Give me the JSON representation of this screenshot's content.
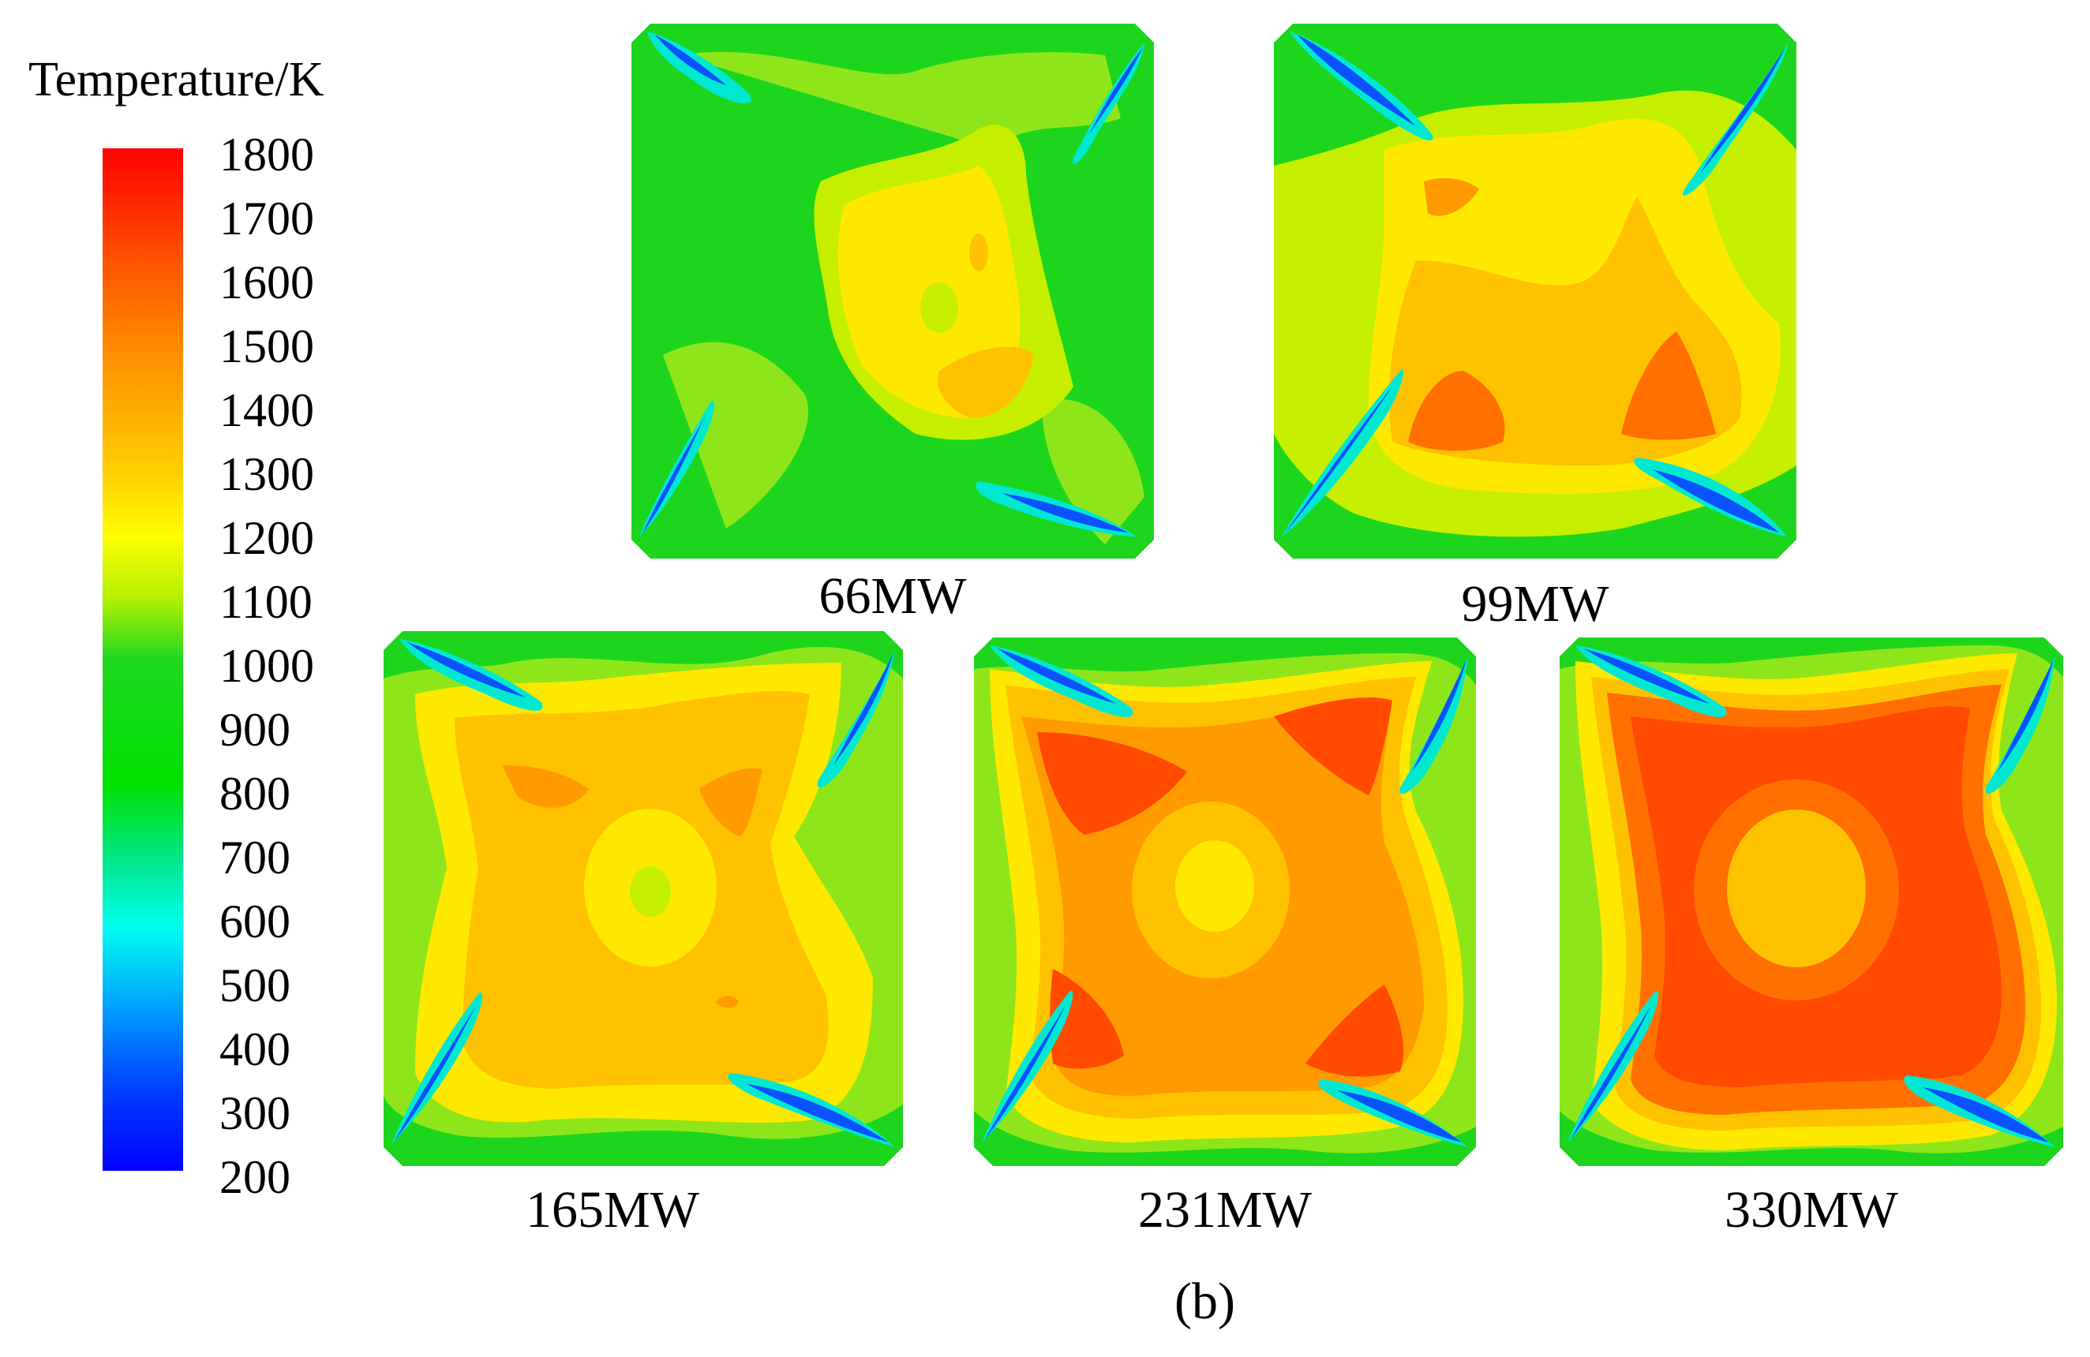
{
  "legend": {
    "title": "Temperature/K",
    "ticks": [
      "1800",
      "1700",
      "1600",
      "1500",
      "1400",
      "1300",
      "1200",
      "1100",
      "1000",
      "900",
      "800",
      "700",
      "600",
      "500",
      "400",
      "300",
      "200"
    ],
    "gradient_colors": [
      "#ff0000",
      "#ff5a00",
      "#ff9000",
      "#ffc400",
      "#ffff00",
      "#b4ff00",
      "#2cd12c",
      "#00e000",
      "#00e060",
      "#00ffd0",
      "#00d8ff",
      "#0090ff",
      "#0030ff",
      "#0000ff"
    ]
  },
  "panels": [
    {
      "label": "66MW"
    },
    {
      "label": "99MW"
    },
    {
      "label": "165MW"
    },
    {
      "label": "231MW"
    },
    {
      "label": "330MW"
    }
  ],
  "sublabel": "(b)",
  "colors": {
    "green": "#1ed51e",
    "lightgreen": "#8ee61a",
    "yellowgreen": "#c6ef00",
    "yellow": "#ffe800",
    "gold": "#ffc200",
    "orange": "#ff9a00",
    "darkorange": "#ff7000",
    "red": "#ff4a00",
    "cyan": "#00e8d0",
    "blue": "#0a52ff"
  }
}
